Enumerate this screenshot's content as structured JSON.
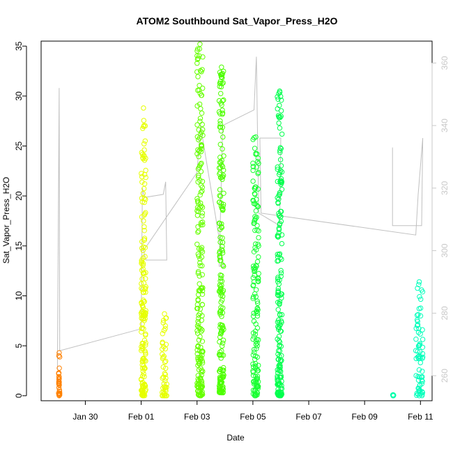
{
  "chart_data": {
    "type": "scatter",
    "title": "ATOM2 Southbound Sat_Vapor_Press_H2O",
    "xlabel": "Date",
    "ylabel": "Sat_Vapor_Press_H2O",
    "xlim": [
      "2017-01-28T10:00",
      "2017-02-11T10:00"
    ],
    "ylim": [
      -0.5,
      35.5
    ],
    "y2lim": [
      252,
      367
    ],
    "x_ticks": [
      {
        "label": "Jan 30",
        "date": "2017-01-30"
      },
      {
        "label": "Feb 01",
        "date": "2017-02-01"
      },
      {
        "label": "Feb 03",
        "date": "2017-02-03"
      },
      {
        "label": "Feb 05",
        "date": "2017-02-05"
      },
      {
        "label": "Feb 07",
        "date": "2017-02-07"
      },
      {
        "label": "Feb 09",
        "date": "2017-02-09"
      },
      {
        "label": "Feb 11",
        "date": "2017-02-11"
      }
    ],
    "y_ticks": [
      "0",
      "5",
      "10",
      "15",
      "20",
      "25",
      "30",
      "35"
    ],
    "y2_ticks": [
      "260",
      "280",
      "300",
      "320",
      "340",
      "360"
    ],
    "point_series": [
      {
        "color": "#ff8000",
        "x": [
          "2017-01-29T01:00",
          "2017-01-29T02:00"
        ],
        "y_range": [
          0,
          4.3
        ]
      },
      {
        "color": "#e6ff00",
        "x": [
          "2017-02-01T00:00",
          "2017-02-01T04:00"
        ],
        "y_range": [
          0,
          28.8
        ]
      },
      {
        "color": "#e6ff00",
        "x": [
          "2017-02-01T18:00",
          "2017-02-01T22:00"
        ],
        "y_range": [
          0,
          8.2
        ]
      },
      {
        "color": "#66ff00",
        "x": [
          "2017-02-03T00:00",
          "2017-02-03T05:00"
        ],
        "y_range": [
          0,
          35.2
        ]
      },
      {
        "color": "#4dff00",
        "x": [
          "2017-02-03T19:00",
          "2017-02-03T23:00"
        ],
        "y_range": [
          0.3,
          32.9
        ]
      },
      {
        "color": "#1aff33",
        "x": [
          "2017-02-05T00:00",
          "2017-02-05T05:00"
        ],
        "y_range": [
          0,
          25.9
        ]
      },
      {
        "color": "#00ff4d",
        "x": [
          "2017-02-05T21:00",
          "2017-02-06T01:00"
        ],
        "y_range": [
          0,
          30.5
        ]
      },
      {
        "color": "#00ffaa",
        "x": [
          "2017-02-10T00:00",
          "2017-02-10T01:00"
        ],
        "y_range": [
          0,
          0.1
        ]
      },
      {
        "color": "#00ffbb",
        "x": [
          "2017-02-10T20:00",
          "2017-02-11T02:00"
        ],
        "y_range": [
          0,
          11.4
        ]
      }
    ],
    "line_series": {
      "color": "#c0c0c0",
      "axis": "right",
      "points": [
        [
          "2017-01-29T00:00",
          262
        ],
        [
          "2017-01-29T01:30",
          352
        ],
        [
          "2017-01-29T02:00",
          268
        ],
        [
          "2017-02-01T00:00",
          275
        ],
        [
          "2017-02-01T01:00",
          320
        ],
        [
          "2017-02-01T03:00",
          317
        ],
        [
          "2017-02-01T19:00",
          318
        ],
        [
          "2017-02-01T21:00",
          322
        ],
        [
          "2017-02-01T22:00",
          297
        ],
        [
          "2017-02-01T04:00",
          297
        ],
        [
          "2017-02-01T02:00",
          300
        ],
        [
          "2017-02-03T00:00",
          325
        ],
        [
          "2017-02-03T03:00",
          340
        ],
        [
          "2017-02-03T23:00",
          295
        ],
        [
          "2017-02-03T19:00",
          295
        ],
        [
          "2017-02-03T22:00",
          340
        ],
        [
          "2017-02-05T01:00",
          345
        ],
        [
          "2017-02-05T03:00",
          362
        ],
        [
          "2017-02-05T05:00",
          312
        ],
        [
          "2017-02-05T23:00",
          308
        ],
        [
          "2017-02-06T00:00",
          336
        ],
        [
          "2017-02-05T06:00",
          336
        ],
        [
          "2017-02-05T07:00",
          312
        ],
        [
          "2017-02-10T20:00",
          305
        ],
        [
          "2017-02-10T22:00",
          318
        ],
        [
          "2017-02-11T02:00",
          336
        ],
        [
          "2017-02-11T01:00",
          308
        ],
        [
          "2017-02-10T00:00",
          308
        ],
        [
          "2017-02-10T00:00",
          333
        ]
      ]
    }
  }
}
